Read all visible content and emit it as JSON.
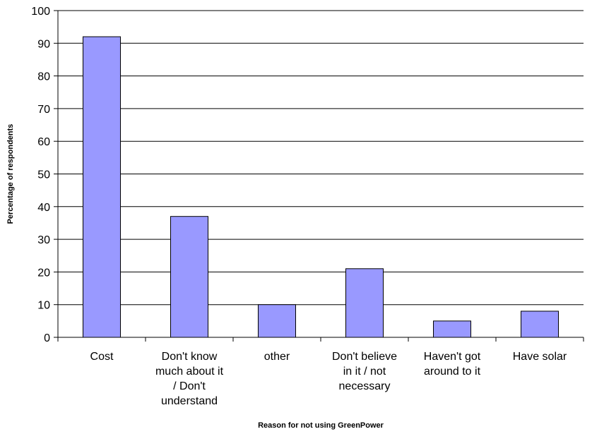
{
  "chart_data": {
    "type": "bar",
    "title": "",
    "xlabel": "Reason for not using GreenPower",
    "ylabel": "Percentage of respondents",
    "ylim": [
      0,
      100
    ],
    "yticks": [
      0,
      10,
      20,
      30,
      40,
      50,
      60,
      70,
      80,
      90,
      100
    ],
    "categories": [
      [
        "Cost"
      ],
      [
        "Don't know",
        "much about it",
        "/ Don't",
        "understand"
      ],
      [
        "other"
      ],
      [
        "Don't believe",
        "in it / not",
        "necessary"
      ],
      [
        "Haven't got",
        "around to it"
      ],
      [
        "Have solar"
      ]
    ],
    "values": [
      92,
      37,
      10,
      21,
      5,
      8
    ],
    "grid": true,
    "legend": "none",
    "bar_color": "#9999ff",
    "bar_stroke": "#000000"
  }
}
